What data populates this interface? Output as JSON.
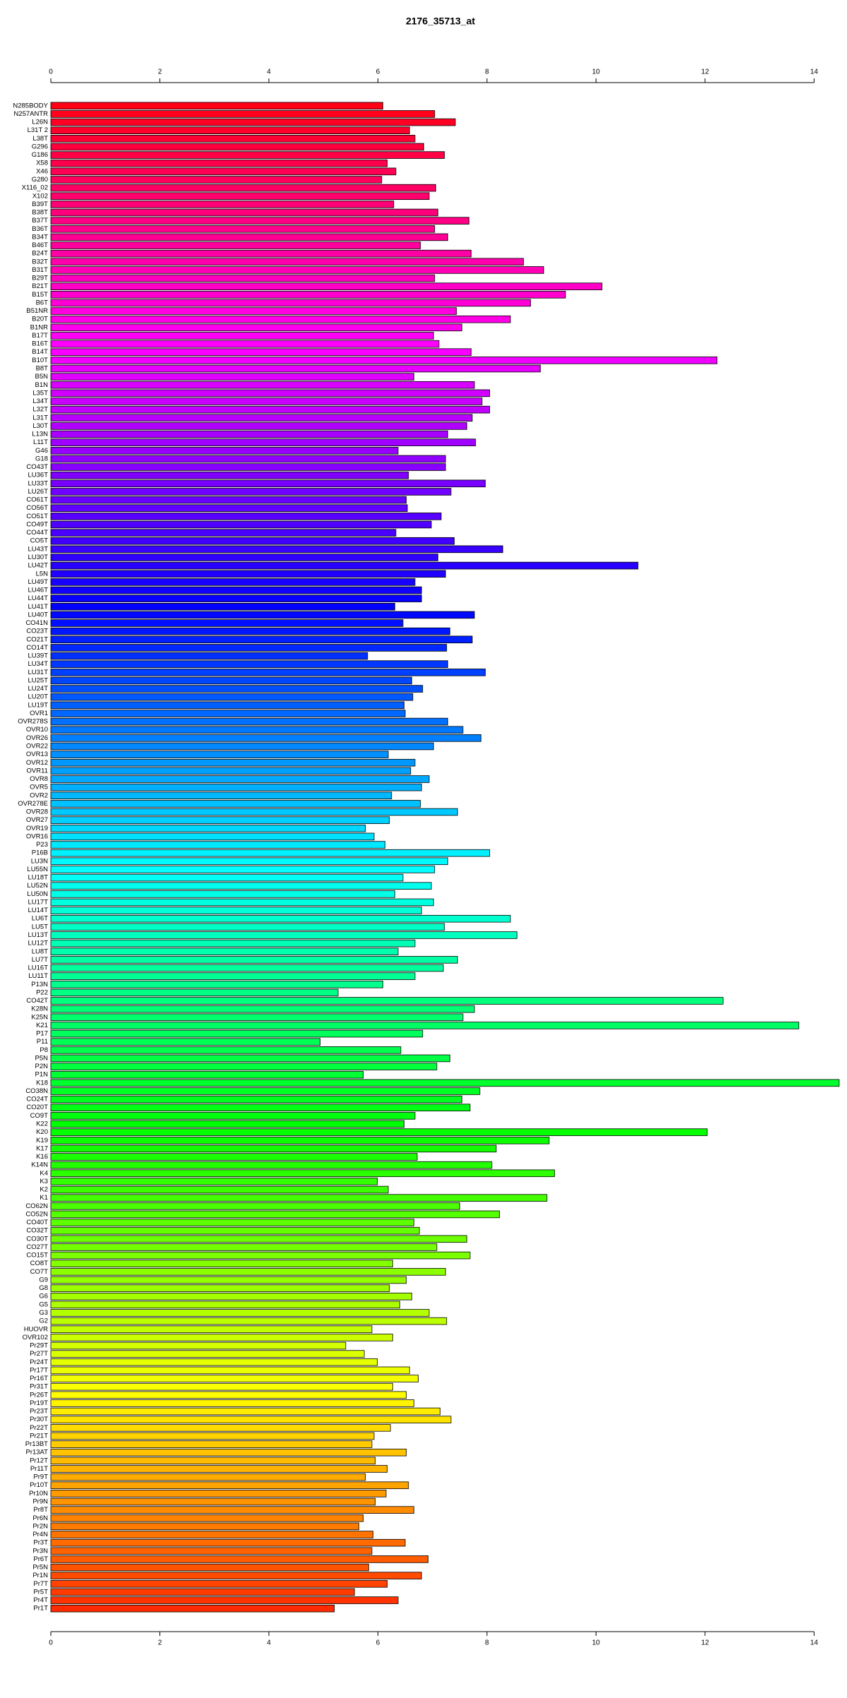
{
  "chart_data": {
    "type": "barh",
    "title": "2176_35713_at",
    "palette": "rainbow",
    "categories": [
      "N285BODY",
      "N257ANTR",
      "L26N",
      "L31T 2",
      "L38T",
      "G296",
      "G186",
      "X58",
      "X46",
      "G280",
      "X116_02",
      "X102",
      "B39T",
      "B38T",
      "B37T",
      "B36T",
      "B34T",
      "B46T",
      "B24T",
      "B32T",
      "B31T",
      "B29T",
      "B21T",
      "B15T",
      "B6T",
      "B51NR",
      "B20T",
      "B1NR",
      "B17T",
      "B16T",
      "B14T",
      "B10T",
      "B8T",
      "B5N",
      "B1N",
      "L35T",
      "L34T",
      "L32T",
      "L31T",
      "L30T",
      "L13N",
      "L11T",
      "G46",
      "G18",
      "CO43T",
      "LU36T",
      "LU33T",
      "LU26T",
      "CO61T",
      "CO56T",
      "CO51T",
      "CO49T",
      "CO44T",
      "CO5T",
      "LU43T",
      "LU30T",
      "LU42T",
      "L5N",
      "LU49T",
      "LU46T",
      "LU44T",
      "LU41T",
      "LU40T",
      "CO41N",
      "CO23T",
      "CO21T",
      "CO14T",
      "LU39T",
      "LU34T",
      "LU31T",
      "LU25T",
      "LU24T",
      "LU20T",
      "LU19T",
      "OVR1",
      "OVR278S",
      "OVR10",
      "OVR26",
      "OVR22",
      "OVR13",
      "OVR12",
      "OVR11",
      "OVR8",
      "OVR5",
      "OVR2",
      "OVR278E",
      "OVR28",
      "OVR27",
      "OVR19",
      "OVR16",
      "P23",
      "P16B",
      "LU3N",
      "LU55N",
      "LU18T",
      "LU52N",
      "LU50N",
      "LU17T",
      "LU14T",
      "LU6T",
      "LU5T",
      "LU13T",
      "LU12T",
      "LU8T",
      "LU7T",
      "LU16T",
      "LU11T",
      "P13N",
      "P22",
      "CO42T",
      "K28N",
      "K25N",
      "K21",
      "P17",
      "P11",
      "P8",
      "P5N",
      "P2N",
      "P1N",
      "K18",
      "CO38N",
      "CO24T",
      "CO20T",
      "CO9T",
      "K22",
      "K20",
      "K19",
      "K17",
      "K16",
      "K14N",
      "K4",
      "K3",
      "K2",
      "K1",
      "CO62N",
      "CO52N",
      "CO40T",
      "CO32T",
      "CO30T",
      "CO27T",
      "CO15T",
      "CO8T",
      "CO7T",
      "G9",
      "G8",
      "G6",
      "G5",
      "G3",
      "G2",
      "HUOVR",
      "OVR102",
      "Pr29T",
      "Pr27T",
      "Pr24T",
      "Pr17T",
      "Pr16T",
      "Pr31T",
      "Pr26T",
      "Pr19T",
      "Pr23T",
      "Pr30T",
      "Pr22T",
      "Pr21T",
      "Pr13BT",
      "Pr13AT",
      "Pr12T",
      "Pr11T",
      "Pr9T",
      "Pr10T",
      "Pr10N",
      "Pr9N",
      "Pr8T",
      "Pr6N",
      "Pr2N",
      "Pr4N",
      "Pr3T",
      "Pr3N",
      "Pr6T",
      "Pr5N",
      "Pr1N",
      "Pr7T",
      "Pr5T",
      "Pr4T",
      "Pr1T"
    ],
    "values": [
      6.09,
      7.04,
      7.42,
      6.58,
      6.68,
      6.84,
      7.22,
      6.17,
      6.33,
      6.07,
      7.06,
      6.94,
      6.29,
      7.1,
      7.67,
      7.04,
      7.28,
      6.78,
      7.71,
      8.67,
      9.04,
      7.04,
      10.11,
      9.44,
      8.8,
      7.44,
      8.43,
      7.54,
      7.02,
      7.12,
      7.71,
      12.22,
      8.98,
      6.66,
      7.77,
      8.05,
      7.91,
      8.05,
      7.73,
      7.63,
      7.28,
      7.79,
      6.37,
      7.24,
      7.24,
      6.56,
      7.97,
      7.34,
      6.52,
      6.54,
      7.16,
      6.98,
      6.33,
      7.4,
      8.29,
      7.1,
      10.77,
      7.24,
      6.68,
      6.8,
      6.8,
      6.31,
      7.77,
      6.46,
      7.32,
      7.73,
      7.26,
      5.81,
      7.28,
      7.97,
      6.62,
      6.82,
      6.64,
      6.48,
      6.5,
      7.28,
      7.56,
      7.89,
      7.02,
      6.19,
      6.68,
      6.6,
      6.94,
      6.8,
      6.25,
      6.78,
      7.46,
      6.21,
      5.77,
      5.93,
      6.13,
      8.05,
      7.28,
      7.04,
      6.46,
      6.98,
      6.31,
      7.02,
      6.8,
      8.43,
      7.22,
      8.55,
      6.68,
      6.37,
      7.46,
      7.2,
      6.68,
      6.09,
      5.27,
      12.33,
      7.77,
      7.56,
      13.72,
      6.82,
      4.94,
      6.42,
      7.32,
      7.08,
      5.73,
      14.46,
      7.87,
      7.54,
      7.69,
      6.68,
      6.48,
      12.04,
      9.14,
      8.17,
      6.72,
      8.09,
      9.24,
      5.99,
      6.19,
      9.1,
      7.5,
      8.23,
      6.66,
      6.76,
      7.63,
      7.08,
      7.69,
      6.27,
      7.24,
      6.52,
      6.21,
      6.62,
      6.4,
      6.94,
      7.26,
      5.89,
      6.27,
      5.41,
      5.75,
      5.99,
      6.58,
      6.74,
      6.27,
      6.52,
      6.66,
      7.14,
      7.34,
      6.23,
      5.93,
      5.89,
      6.52,
      5.95,
      6.17,
      5.77,
      6.56,
      6.15,
      5.95,
      6.66,
      5.73,
      5.65,
      5.91,
      6.5,
      5.89,
      6.92,
      5.83,
      6.8,
      6.17,
      5.57,
      6.37,
      5.2
    ],
    "xlim": [
      0,
      14.5
    ],
    "xticks": [
      0,
      2,
      4,
      6,
      8,
      10,
      12,
      14
    ]
  }
}
